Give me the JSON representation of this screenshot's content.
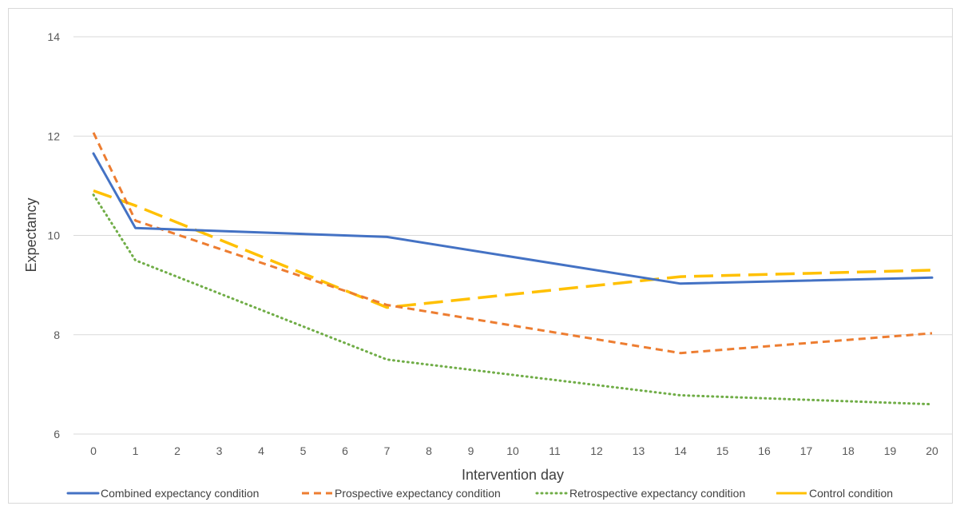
{
  "chart_data": {
    "type": "line",
    "xlabel": "Intervention day",
    "ylabel": "Expectancy",
    "x": [
      0,
      1,
      7,
      14,
      20
    ],
    "x_ticks": [
      0,
      1,
      2,
      3,
      4,
      5,
      6,
      7,
      8,
      9,
      10,
      11,
      12,
      13,
      14,
      15,
      16,
      17,
      18,
      19,
      20
    ],
    "y_ticks": [
      6,
      8,
      10,
      12,
      14
    ],
    "ylim": [
      6,
      14
    ],
    "xlim": [
      0,
      20
    ],
    "grid": "horizontal",
    "legend_position": "bottom",
    "series": [
      {
        "name": "Combined expectancy condition",
        "values": [
          11.65,
          10.15,
          9.97,
          9.03,
          9.15
        ],
        "color": "#4472c4",
        "style": "solid"
      },
      {
        "name": "Prospective expectancy condition",
        "values": [
          12.07,
          10.3,
          8.6,
          7.63,
          8.03
        ],
        "color": "#ed7d31",
        "style": "dashed"
      },
      {
        "name": "Retrospective expectancy condition",
        "values": [
          10.82,
          9.5,
          7.5,
          6.78,
          6.6
        ],
        "color": "#70ad47",
        "style": "dotted"
      },
      {
        "name": "Control condition",
        "values": [
          10.9,
          10.6,
          8.55,
          9.17,
          9.3
        ],
        "color": "#ffc000",
        "style": "longdash"
      }
    ]
  }
}
